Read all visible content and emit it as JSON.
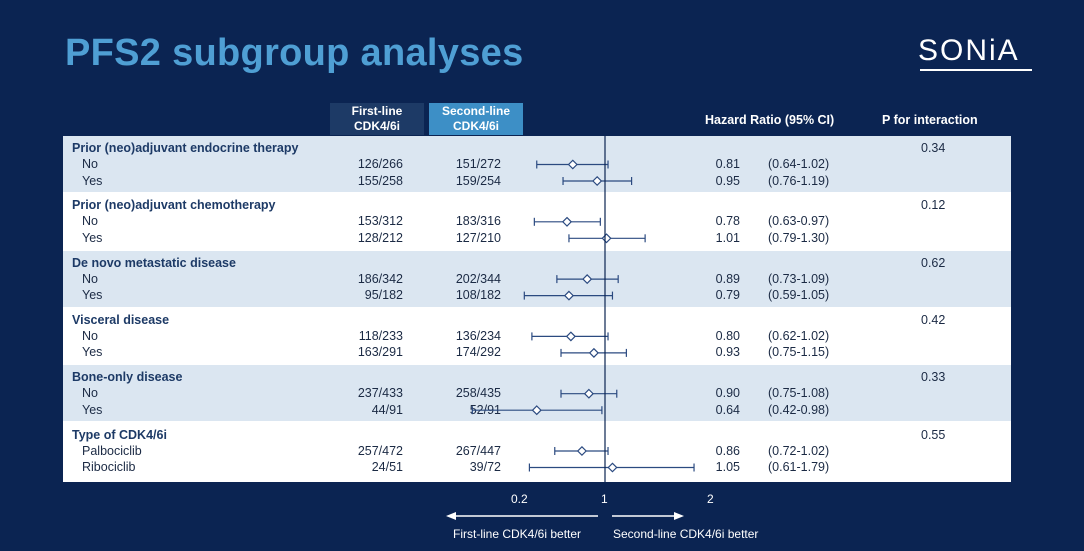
{
  "slide": {
    "title": "PFS2 subgroup analyses",
    "logo": "SONiA"
  },
  "headers": {
    "first_line": [
      "First-line",
      "CDK4/6i"
    ],
    "second_line": [
      "Second-line",
      "CDK4/6i"
    ],
    "hazard_ratio": "Hazard Ratio (95% CI)",
    "p_interaction": "P for interaction"
  },
  "colors": {
    "background": "#0b2452",
    "title": "#4f9fd4",
    "band_shaded": "#dbe6f1",
    "first_line_header": "#1d3a66",
    "second_line_header": "#3d8fc6",
    "marker_stroke": "#2b4a80"
  },
  "chart_data": {
    "type": "scatter",
    "subtype": "forest-plot",
    "x_scale": "log",
    "reference_line": 1,
    "xticks": [
      0.2,
      1,
      2
    ],
    "xtick_labels": [
      "0.2",
      "1",
      "2"
    ],
    "direction_labels": {
      "left": "First-line CDK4/6i better",
      "right": "Second-line CDK4/6i better"
    },
    "groups": [
      {
        "label": "Prior (neo)adjuvant endocrine therapy",
        "p_interaction": "0.34",
        "rows": [
          {
            "label": "No",
            "first": "126/266",
            "second": "151/272",
            "hr": 0.81,
            "lo": 0.64,
            "hi": 1.02,
            "hr_text": "0.81",
            "ci_text": "(0.64-1.02)"
          },
          {
            "label": "Yes",
            "first": "155/258",
            "second": "159/254",
            "hr": 0.95,
            "lo": 0.76,
            "hi": 1.19,
            "hr_text": "0.95",
            "ci_text": "(0.76-1.19)"
          }
        ]
      },
      {
        "label": "Prior (neo)adjuvant chemotherapy",
        "p_interaction": "0.12",
        "rows": [
          {
            "label": "No",
            "first": "153/312",
            "second": "183/316",
            "hr": 0.78,
            "lo": 0.63,
            "hi": 0.97,
            "hr_text": "0.78",
            "ci_text": "(0.63-0.97)"
          },
          {
            "label": "Yes",
            "first": "128/212",
            "second": "127/210",
            "hr": 1.01,
            "lo": 0.79,
            "hi": 1.3,
            "hr_text": "1.01",
            "ci_text": "(0.79-1.30)"
          }
        ]
      },
      {
        "label": "De novo metastatic disease",
        "p_interaction": "0.62",
        "rows": [
          {
            "label": "No",
            "first": "186/342",
            "second": "202/344",
            "hr": 0.89,
            "lo": 0.73,
            "hi": 1.09,
            "hr_text": "0.89",
            "ci_text": "(0.73-1.09)"
          },
          {
            "label": "Yes",
            "first": "95/182",
            "second": "108/182",
            "hr": 0.79,
            "lo": 0.59,
            "hi": 1.05,
            "hr_text": "0.79",
            "ci_text": "(0.59-1.05)"
          }
        ]
      },
      {
        "label": "Visceral disease",
        "p_interaction": "0.42",
        "rows": [
          {
            "label": "No",
            "first": "118/233",
            "second": "136/234",
            "hr": 0.8,
            "lo": 0.62,
            "hi": 1.02,
            "hr_text": "0.80",
            "ci_text": "(0.62-1.02)"
          },
          {
            "label": "Yes",
            "first": "163/291",
            "second": "174/292",
            "hr": 0.93,
            "lo": 0.75,
            "hi": 1.15,
            "hr_text": "0.93",
            "ci_text": "(0.75-1.15)"
          }
        ]
      },
      {
        "label": "Bone-only disease",
        "p_interaction": "0.33",
        "rows": [
          {
            "label": "No",
            "first": "237/433",
            "second": "258/435",
            "hr": 0.9,
            "lo": 0.75,
            "hi": 1.08,
            "hr_text": "0.90",
            "ci_text": "(0.75-1.08)"
          },
          {
            "label": "Yes",
            "first": "44/91",
            "second": "52/91",
            "hr": 0.64,
            "lo": 0.42,
            "hi": 0.98,
            "hr_text": "0.64",
            "ci_text": "(0.42-0.98)"
          }
        ]
      },
      {
        "label": "Type of CDK4/6i",
        "p_interaction": "0.55",
        "rows": [
          {
            "label": "Palbociclib",
            "first": "257/472",
            "second": "267/447",
            "hr": 0.86,
            "lo": 0.72,
            "hi": 1.02,
            "hr_text": "0.86",
            "ci_text": "(0.72-1.02)"
          },
          {
            "label": "Ribociclib",
            "first": "24/51",
            "second": "39/72",
            "hr": 1.05,
            "lo": 0.61,
            "hi": 1.79,
            "hr_text": "1.05",
            "ci_text": "(0.61-1.79)"
          }
        ]
      }
    ]
  }
}
